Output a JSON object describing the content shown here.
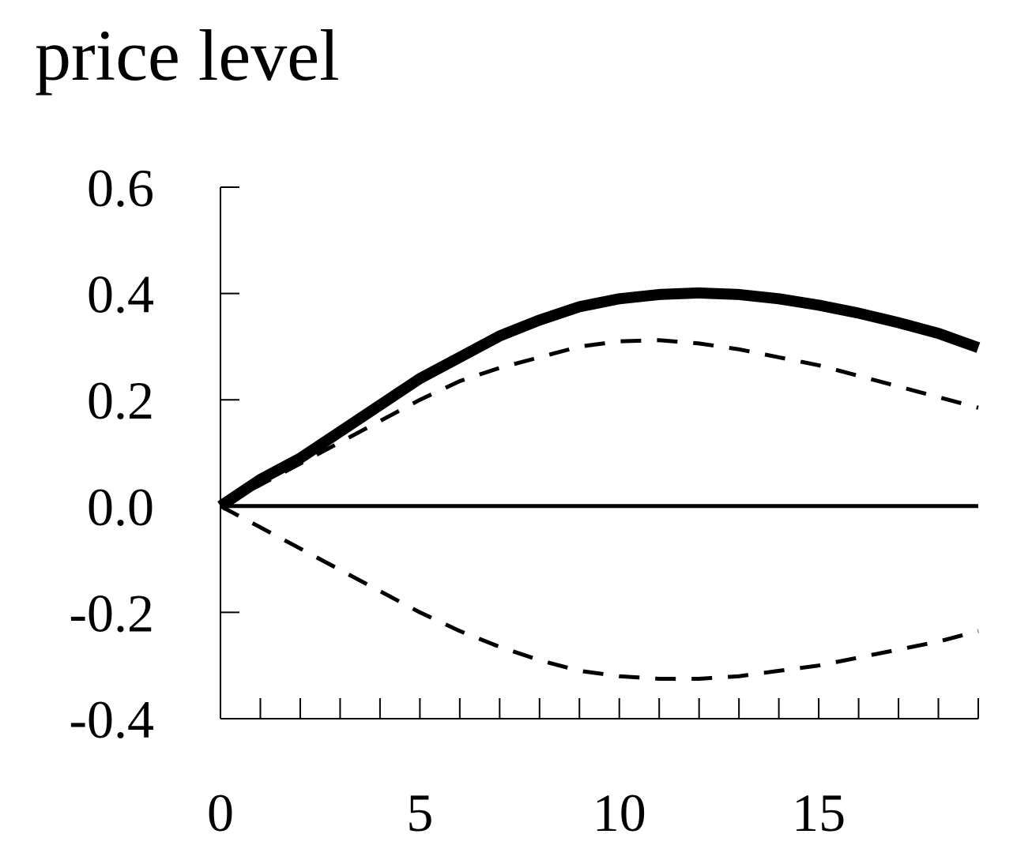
{
  "chart_data": {
    "type": "line",
    "title": "price level",
    "xlabel": "",
    "ylabel": "",
    "xlim": [
      0,
      19
    ],
    "ylim": [
      -0.4,
      0.6
    ],
    "x_minor_ticks": [
      0,
      1,
      2,
      3,
      4,
      5,
      6,
      7,
      8,
      9,
      10,
      11,
      12,
      13,
      14,
      15,
      16,
      17,
      18,
      19
    ],
    "x_tick_labels": [
      "0",
      "5",
      "10",
      "15"
    ],
    "x_tick_values": [
      0,
      5,
      10,
      15
    ],
    "y_ticks": [
      -0.4,
      -0.2,
      0.0,
      0.2,
      0.4,
      0.6
    ],
    "y_tick_labels": [
      "-0.4",
      "-0.2",
      "0.0",
      "0.2",
      "0.4",
      "0.6"
    ],
    "grid": false,
    "legend": "none",
    "x": [
      0,
      1,
      2,
      3,
      4,
      5,
      6,
      7,
      8,
      9,
      10,
      11,
      12,
      13,
      14,
      15,
      16,
      17,
      18,
      19
    ],
    "series": [
      {
        "role": "point estimate",
        "style": "solid-thick",
        "color": "#000000",
        "values": [
          0.0,
          0.05,
          0.09,
          0.14,
          0.19,
          0.24,
          0.28,
          0.32,
          0.35,
          0.375,
          0.39,
          0.398,
          0.401,
          0.398,
          0.39,
          0.378,
          0.363,
          0.345,
          0.325,
          0.298
        ]
      },
      {
        "role": "upper band",
        "style": "dashed",
        "color": "#000000",
        "values": [
          0.0,
          0.04,
          0.08,
          0.12,
          0.16,
          0.2,
          0.235,
          0.26,
          0.28,
          0.3,
          0.31,
          0.312,
          0.306,
          0.295,
          0.28,
          0.265,
          0.245,
          0.225,
          0.205,
          0.185
        ]
      },
      {
        "role": "lower band",
        "style": "dashed",
        "color": "#000000",
        "values": [
          0.0,
          -0.04,
          -0.08,
          -0.12,
          -0.16,
          -0.2,
          -0.235,
          -0.265,
          -0.29,
          -0.31,
          -0.32,
          -0.325,
          -0.325,
          -0.32,
          -0.31,
          -0.3,
          -0.285,
          -0.27,
          -0.255,
          -0.235
        ]
      },
      {
        "role": "zero line",
        "style": "solid",
        "color": "#000000",
        "values": [
          0,
          0,
          0,
          0,
          0,
          0,
          0,
          0,
          0,
          0,
          0,
          0,
          0,
          0,
          0,
          0,
          0,
          0,
          0,
          0
        ]
      }
    ]
  }
}
